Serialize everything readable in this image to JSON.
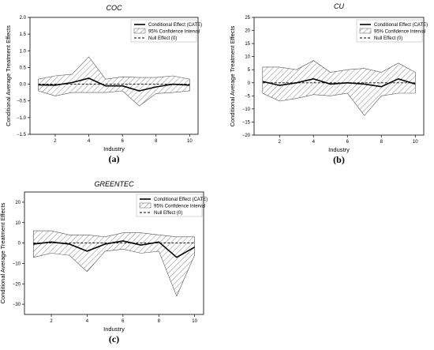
{
  "chart_data": [
    {
      "panel_label": "(a)",
      "type": "line",
      "title": "COC",
      "xlabel": "Industry",
      "ylabel": "Conditional Average Treatment Effects",
      "x": [
        1,
        2,
        3,
        4,
        5,
        6,
        7,
        8,
        9,
        10
      ],
      "xlim": [
        0.5,
        10.5
      ],
      "ylim": [
        -1.5,
        2.0
      ],
      "xticks": [
        "2",
        "4",
        "6",
        "8",
        "10"
      ],
      "yticks": [
        "−1.5",
        "−1.0",
        "−0.5",
        "0.0",
        "0.5",
        "1.0",
        "1.5",
        "2.0"
      ],
      "series": [
        {
          "name": "Conditional Effect (CATE)",
          "values": [
            -0.02,
            -0.03,
            0.05,
            0.18,
            -0.05,
            -0.05,
            -0.2,
            -0.08,
            0.0,
            -0.03
          ]
        },
        {
          "name": "95% Confidence Interval",
          "lower": [
            -0.2,
            -0.35,
            -0.25,
            -0.25,
            -0.25,
            -0.2,
            -0.65,
            -0.28,
            -0.25,
            -0.2
          ],
          "upper": [
            0.15,
            0.25,
            0.3,
            0.82,
            0.15,
            0.22,
            0.2,
            0.2,
            0.25,
            0.15
          ]
        },
        {
          "name": "Null Effect (0)",
          "values": [
            0,
            0,
            0,
            0,
            0,
            0,
            0,
            0,
            0,
            0
          ]
        }
      ],
      "legend": "top-right",
      "grid": false
    },
    {
      "panel_label": "(b)",
      "type": "line",
      "title": "CU",
      "xlabel": "Industry",
      "ylabel": "Conditional Average Treatment Effects",
      "x": [
        1,
        2,
        3,
        4,
        5,
        6,
        7,
        8,
        9,
        10
      ],
      "xlim": [
        0.5,
        10.5
      ],
      "ylim": [
        -20,
        25
      ],
      "xticks": [
        "2",
        "4",
        "6",
        "8",
        "10"
      ],
      "yticks": [
        "−20",
        "−15",
        "−10",
        "−5",
        "0",
        "5",
        "10",
        "15",
        "20",
        "25"
      ],
      "series": [
        {
          "name": "Conditional Effect (CATE)",
          "values": [
            0.5,
            -1.0,
            0.0,
            1.5,
            -0.5,
            0.0,
            -0.5,
            -1.5,
            1.5,
            -0.5
          ]
        },
        {
          "name": "95% Confidence Interval",
          "lower": [
            -4,
            -7,
            -6,
            -4.5,
            -5,
            -4,
            -12.5,
            -5,
            -4,
            -4
          ],
          "upper": [
            6,
            6,
            5,
            8.5,
            4,
            5,
            5.5,
            4,
            7.5,
            4
          ]
        },
        {
          "name": "Null Effect (0)",
          "values": [
            0,
            0,
            0,
            0,
            0,
            0,
            0,
            0,
            0,
            0
          ]
        }
      ],
      "legend": "top-right",
      "grid": false
    },
    {
      "panel_label": "(c)",
      "type": "line",
      "title": "GREENTEC",
      "xlabel": "Industry",
      "ylabel": "Conditional Average Treatment Effects",
      "x": [
        1,
        2,
        3,
        4,
        5,
        6,
        7,
        8,
        9,
        10
      ],
      "xlim": [
        0.5,
        10.5
      ],
      "ylim": [
        -35,
        25
      ],
      "xticks": [
        "2",
        "4",
        "6",
        "8",
        "10"
      ],
      "yticks": [
        "−30",
        "−20",
        "−10",
        "0",
        "10",
        "20"
      ],
      "series": [
        {
          "name": "Conditional Effect (CATE)",
          "values": [
            -0.5,
            0.5,
            -0.5,
            -4,
            -0.5,
            1,
            -1,
            0.5,
            -7,
            -2
          ]
        },
        {
          "name": "95% Confidence Interval",
          "lower": [
            -7,
            -5,
            -6,
            -14,
            -4,
            -3,
            -5,
            -4,
            -26,
            -6
          ],
          "upper": [
            6,
            6,
            4,
            4,
            3,
            5,
            5,
            4,
            3,
            3
          ]
        },
        {
          "name": "Null Effect (0)",
          "values": [
            0,
            0,
            0,
            0,
            0,
            0,
            0,
            0,
            0,
            0
          ]
        }
      ],
      "legend": "top-right",
      "grid": false
    }
  ]
}
